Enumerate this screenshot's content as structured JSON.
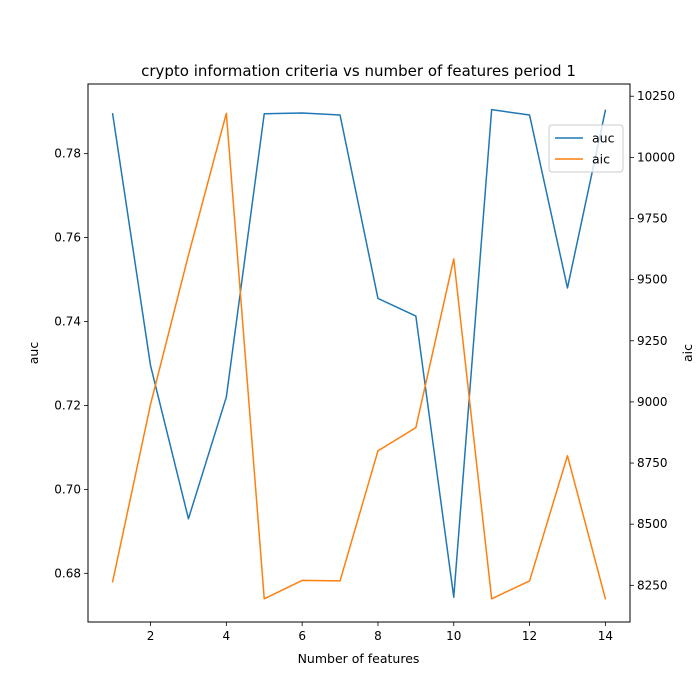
{
  "chart_data": {
    "type": "line",
    "title": "crypto information criteria vs number of features period 1",
    "xlabel": "Number of features",
    "ylabel_left": "auc",
    "ylabel_right": "aic",
    "x": [
      1,
      2,
      3,
      4,
      5,
      6,
      7,
      8,
      9,
      10,
      11,
      12,
      13,
      14
    ],
    "xlim": [
      0.35,
      14.65
    ],
    "ylim_left": [
      0.6684,
      0.7966
    ],
    "ylim_right": [
      8100,
      10300
    ],
    "x_ticks": [
      2,
      4,
      6,
      8,
      10,
      12,
      14
    ],
    "y_ticks_left": [
      0.68,
      0.7,
      0.72,
      0.74,
      0.76,
      0.78
    ],
    "y_tick_labels_left": [
      "0.68",
      "0.70",
      "0.72",
      "0.74",
      "0.76",
      "0.78"
    ],
    "y_ticks_right": [
      8250,
      8500,
      8750,
      9000,
      9250,
      9500,
      9750,
      10000,
      10250
    ],
    "grid": false,
    "legend_position": "upper right",
    "series": [
      {
        "name": "auc",
        "axis": "left",
        "color": "#1f77b4",
        "values": [
          0.7895,
          0.7295,
          0.693,
          0.722,
          0.7895,
          0.7897,
          0.7892,
          0.7455,
          0.7413,
          0.6743,
          0.7905,
          0.7892,
          0.748,
          0.7903
        ]
      },
      {
        "name": "aic",
        "axis": "right",
        "color": "#ff7f0e",
        "values": [
          8265,
          8990,
          9600,
          10180,
          8195,
          8270,
          8268,
          8800,
          8895,
          9585,
          8195,
          8268,
          8780,
          8195
        ]
      }
    ]
  }
}
